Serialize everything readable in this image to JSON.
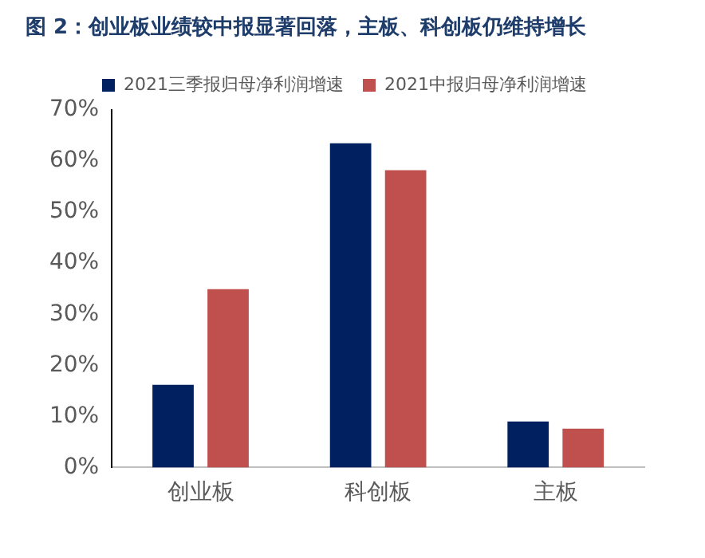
{
  "chart_data": {
    "type": "bar",
    "title": "图 2：创业板业绩较中报显著回落，主板、科创板仍维持增长",
    "categories": [
      "创业板",
      "科创板",
      "主板"
    ],
    "series": [
      {
        "name": "2021三季报归母净利润增速",
        "color": "#002060",
        "values": [
          16.2,
          63.5,
          9.0
        ]
      },
      {
        "name": "2021中报归母净利润增速",
        "color": "#c0504d",
        "values": [
          34.9,
          58.2,
          7.6
        ]
      }
    ],
    "ylim": [
      0,
      70
    ],
    "yticks": [
      {
        "value": 0,
        "label": "0%"
      },
      {
        "value": 10,
        "label": "10%"
      },
      {
        "value": 20,
        "label": "20%"
      },
      {
        "value": 30,
        "label": "30%"
      },
      {
        "value": 40,
        "label": "40%"
      },
      {
        "value": 50,
        "label": "50%"
      },
      {
        "value": 60,
        "label": "60%"
      },
      {
        "value": 70,
        "label": "70%"
      }
    ],
    "grid": false,
    "legend": "top"
  }
}
